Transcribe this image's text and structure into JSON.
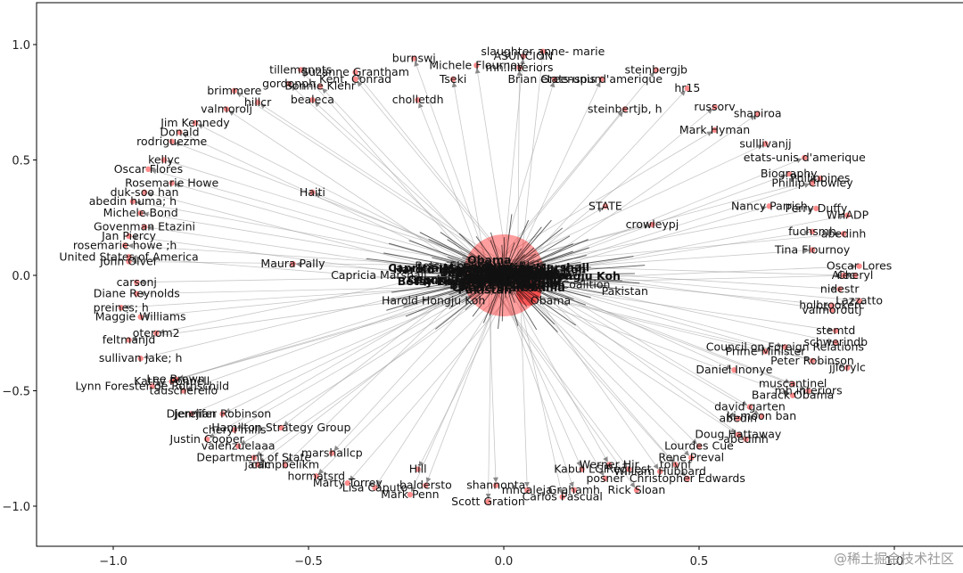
{
  "chart_data": {
    "type": "scatter",
    "title": "",
    "xlabel": "",
    "ylabel": "",
    "xlim": [
      -1.2,
      1.2
    ],
    "ylim": [
      -1.2,
      1.2
    ],
    "xticks": [
      -1.0,
      -0.5,
      0.0,
      0.5,
      1.0
    ],
    "yticks": [
      1.0,
      0.5,
      0.0,
      -0.5,
      -1.0
    ],
    "xtick_labels": [
      "−1.0",
      "−0.5",
      "0.0",
      "0.5",
      "1.0"
    ],
    "ytick_labels": [
      "1.0",
      "0.5",
      "0.0",
      "−0.5",
      "−1.0"
    ],
    "grid": false,
    "node_color": "#ff0000",
    "edge_color": "#9a9a9a",
    "hub": {
      "x": 0.0,
      "y": 0.0
    },
    "outer_nodes": [
      {
        "label": "slaughter anne- marie",
        "x": 0.1,
        "y": 0.97
      },
      {
        "label": "ASUNCION",
        "x": 0.05,
        "y": 0.95
      },
      {
        "label": "burnswj",
        "x": -0.23,
        "y": 0.94
      },
      {
        "label": "Michele Flournoy",
        "x": -0.07,
        "y": 0.91
      },
      {
        "label": "mh.interiors",
        "x": 0.04,
        "y": 0.9
      },
      {
        "label": "steinbergjb",
        "x": 0.39,
        "y": 0.89
      },
      {
        "label": "tillemannts",
        "x": -0.52,
        "y": 0.89
      },
      {
        "label": "Suzanne Grantham",
        "x": -0.38,
        "y": 0.88
      },
      {
        "label": "etats-unis d'amerique",
        "x": 0.25,
        "y": 0.85
      },
      {
        "label": "Tseki",
        "x": -0.13,
        "y": 0.85
      },
      {
        "label": "Brian Greenspun",
        "x": 0.13,
        "y": 0.85
      },
      {
        "label": "Kent, Conrad",
        "x": -0.38,
        "y": 0.85
      },
      {
        "label": "gordonph",
        "x": -0.55,
        "y": 0.83
      },
      {
        "label": "Bonnie Klehr",
        "x": -0.47,
        "y": 0.82
      },
      {
        "label": "hr15",
        "x": 0.47,
        "y": 0.81
      },
      {
        "label": "brimmere",
        "x": -0.69,
        "y": 0.8
      },
      {
        "label": "bealeca",
        "x": -0.49,
        "y": 0.76
      },
      {
        "label": "cholletdh",
        "x": -0.22,
        "y": 0.76
      },
      {
        "label": "hillcr",
        "x": -0.63,
        "y": 0.75
      },
      {
        "label": "russorv",
        "x": 0.54,
        "y": 0.73
      },
      {
        "label": "valmorolj",
        "x": -0.71,
        "y": 0.72
      },
      {
        "label": "steinbertjb, h",
        "x": 0.31,
        "y": 0.72
      },
      {
        "label": "shapiroa",
        "x": 0.65,
        "y": 0.7
      },
      {
        "label": "Jim Kennedy",
        "x": -0.79,
        "y": 0.66
      },
      {
        "label": "Mark Hyman",
        "x": 0.54,
        "y": 0.63
      },
      {
        "label": "Donald",
        "x": -0.83,
        "y": 0.62
      },
      {
        "label": "rodriguezme",
        "x": -0.85,
        "y": 0.58
      },
      {
        "label": "sulllivanjj",
        "x": 0.67,
        "y": 0.57
      },
      {
        "label": "etats-unis d'amerique",
        "x": 0.77,
        "y": 0.51
      },
      {
        "label": "kellyc",
        "x": -0.87,
        "y": 0.5
      },
      {
        "label": "Oscar Flores",
        "x": -0.91,
        "y": 0.46
      },
      {
        "label": "Biography",
        "x": 0.73,
        "y": 0.44
      },
      {
        "label": "Philippines",
        "x": 0.81,
        "y": 0.42
      },
      {
        "label": "Rosemarie Howe",
        "x": -0.85,
        "y": 0.4
      },
      {
        "label": "Phillip Crowley",
        "x": 0.79,
        "y": 0.4
      },
      {
        "label": "Haiti",
        "x": -0.49,
        "y": 0.36
      },
      {
        "label": "duk-soo han",
        "x": -0.92,
        "y": 0.36
      },
      {
        "label": "abedin huma; h",
        "x": -0.95,
        "y": 0.32
      },
      {
        "label": "STATE",
        "x": 0.26,
        "y": 0.3
      },
      {
        "label": "Nancy Parrish",
        "x": 0.68,
        "y": 0.3
      },
      {
        "label": "Perry Duffy",
        "x": 0.8,
        "y": 0.29
      },
      {
        "label": "Michele Bond",
        "x": -0.93,
        "y": 0.27
      },
      {
        "label": "WHADP",
        "x": 0.88,
        "y": 0.26
      },
      {
        "label": "crowleypj",
        "x": 0.38,
        "y": 0.22
      },
      {
        "label": "Govenman Etazini",
        "x": -0.92,
        "y": 0.21
      },
      {
        "label": "fuchsmh",
        "x": 0.79,
        "y": 0.19
      },
      {
        "label": "abedinh",
        "x": 0.87,
        "y": 0.18
      },
      {
        "label": "Jan Piercy",
        "x": -0.96,
        "y": 0.17
      },
      {
        "label": "rosemarie howe ;h",
        "x": -0.97,
        "y": 0.13
      },
      {
        "label": "Tina Flournoy",
        "x": 0.79,
        "y": 0.11
      },
      {
        "label": "United States of America",
        "x": -0.96,
        "y": 0.08
      },
      {
        "label": "John Olver",
        "x": -0.96,
        "y": 0.06
      },
      {
        "label": "Maura Pally",
        "x": -0.54,
        "y": 0.05
      },
      {
        "label": "Oscar Lores",
        "x": 0.91,
        "y": 0.04
      },
      {
        "label": "Alec",
        "x": 0.87,
        "y": 0.0
      },
      {
        "label": "Cheryl",
        "x": 0.9,
        "y": 0.0
      },
      {
        "label": "carsonj",
        "x": -0.94,
        "y": -0.03
      },
      {
        "label": "nidestr",
        "x": 0.86,
        "y": -0.06
      },
      {
        "label": "Diane Reynolds",
        "x": -0.94,
        "y": -0.08
      },
      {
        "label": "Lazzatto",
        "x": 0.91,
        "y": -0.11
      },
      {
        "label": "holbrookerc",
        "x": 0.84,
        "y": -0.13
      },
      {
        "label": "preines; h",
        "x": -0.98,
        "y": -0.14
      },
      {
        "label": "valmoroutj",
        "x": 0.84,
        "y": -0.15
      },
      {
        "label": "Maggie Williams",
        "x": -0.93,
        "y": -0.18
      },
      {
        "label": "stemtd",
        "x": 0.85,
        "y": -0.24
      },
      {
        "label": "oterom2",
        "x": -0.89,
        "y": -0.25
      },
      {
        "label": "feltmanjd",
        "x": -0.96,
        "y": -0.28
      },
      {
        "label": "schwerindb",
        "x": 0.85,
        "y": -0.29
      },
      {
        "label": "Council on Foreign Relations",
        "x": 0.72,
        "y": -0.31
      },
      {
        "label": "Prime Minister",
        "x": 0.67,
        "y": -0.33
      },
      {
        "label": "sullivan jake; h",
        "x": -0.93,
        "y": -0.36
      },
      {
        "label": "Peter Robinson",
        "x": 0.79,
        "y": -0.37
      },
      {
        "label": "jjlorylc",
        "x": 0.88,
        "y": -0.4
      },
      {
        "label": "Daniel Inonye",
        "x": 0.59,
        "y": -0.41
      },
      {
        "label": "Lee Brown",
        "x": -0.84,
        "y": -0.45
      },
      {
        "label": "Kathy Ponnell",
        "x": -0.85,
        "y": -0.46
      },
      {
        "label": "muscantinel",
        "x": 0.74,
        "y": -0.47
      },
      {
        "label": "Lynn Forester de Rothschild",
        "x": -0.9,
        "y": -0.48
      },
      {
        "label": "tauscherello",
        "x": -0.82,
        "y": -0.5
      },
      {
        "label": "mh.interiors",
        "x": 0.78,
        "y": -0.5
      },
      {
        "label": "Barack Obama",
        "x": 0.74,
        "y": -0.52
      },
      {
        "label": "david garten",
        "x": 0.63,
        "y": -0.57
      },
      {
        "label": "Djerejian",
        "x": -0.8,
        "y": -0.6
      },
      {
        "label": "Jennifer Robinson",
        "x": -0.72,
        "y": -0.6
      },
      {
        "label": "ki-moon ban",
        "x": 0.66,
        "y": -0.61
      },
      {
        "label": "abedin",
        "x": 0.6,
        "y": -0.62
      },
      {
        "label": "cheryl mills",
        "x": -0.69,
        "y": -0.67
      },
      {
        "label": "Hamilton Strategy Group",
        "x": -0.57,
        "y": -0.66
      },
      {
        "label": "Doug Hattaway",
        "x": 0.6,
        "y": -0.69
      },
      {
        "label": "abedinh",
        "x": 0.62,
        "y": -0.71
      },
      {
        "label": "Justin Cooper",
        "x": -0.76,
        "y": -0.71
      },
      {
        "label": "valenzuelaaa",
        "x": -0.68,
        "y": -0.74
      },
      {
        "label": "Lourdes Cue",
        "x": 0.5,
        "y": -0.74
      },
      {
        "label": "Department of State",
        "x": -0.64,
        "y": -0.79
      },
      {
        "label": "marshallcp",
        "x": -0.44,
        "y": -0.77
      },
      {
        "label": "Rene Preval",
        "x": 0.48,
        "y": -0.79
      },
      {
        "label": "toivnf",
        "x": 0.44,
        "y": -0.82
      },
      {
        "label": "janlc",
        "x": -0.63,
        "y": -0.82
      },
      {
        "label": "campbelikm",
        "x": -0.56,
        "y": -0.82
      },
      {
        "label": "Werner Hir",
        "x": 0.27,
        "y": -0.82
      },
      {
        "label": "Hill",
        "x": -0.22,
        "y": -0.84
      },
      {
        "label": "Kabul LGF",
        "x": 0.2,
        "y": -0.84
      },
      {
        "label": "Request",
        "x": 0.32,
        "y": -0.84
      },
      {
        "label": "William Hubbard",
        "x": 0.4,
        "y": -0.85
      },
      {
        "label": "hormatsrd",
        "x": -0.48,
        "y": -0.87
      },
      {
        "label": "posner",
        "x": 0.26,
        "y": -0.88
      },
      {
        "label": "Christopher Edwards",
        "x": 0.47,
        "y": -0.88
      },
      {
        "label": "Marty Torrey",
        "x": -0.4,
        "y": -0.9
      },
      {
        "label": "baldersto",
        "x": -0.2,
        "y": -0.91
      },
      {
        "label": "shannonta",
        "x": -0.02,
        "y": -0.91
      },
      {
        "label": "Lisa Caputo",
        "x": -0.33,
        "y": -0.92
      },
      {
        "label": "mhcaleja",
        "x": 0.06,
        "y": -0.93
      },
      {
        "label": "Grahamh",
        "x": 0.18,
        "y": -0.93
      },
      {
        "label": "Rick Sloan",
        "x": 0.34,
        "y": -0.93
      },
      {
        "label": "Mark Penn",
        "x": -0.24,
        "y": -0.95
      },
      {
        "label": "Carlos Pascual",
        "x": 0.15,
        "y": -0.96
      },
      {
        "label": "Scott Gration",
        "x": -0.04,
        "y": -0.98
      }
    ],
    "cluster_labels": [
      {
        "label": "Cherie Blair",
        "x": 0.02,
        "y": 0.04
      },
      {
        "label": "Betsy Ebeling",
        "x": -0.13,
        "y": 0.04
      },
      {
        "label": "Foundation",
        "x": 0.12,
        "y": 0.01
      },
      {
        "label": "Capricia Marshall",
        "x": -0.32,
        "y": 0.0
      },
      {
        "label": "Harold Hongju Koh",
        "x": -0.18,
        "y": -0.11
      },
      {
        "label": "Obama",
        "x": 0.12,
        "y": -0.11
      },
      {
        "label": "Coalition",
        "x": 0.21,
        "y": -0.04
      },
      {
        "label": "Pakistan",
        "x": 0.31,
        "y": -0.07
      }
    ]
  }
}
